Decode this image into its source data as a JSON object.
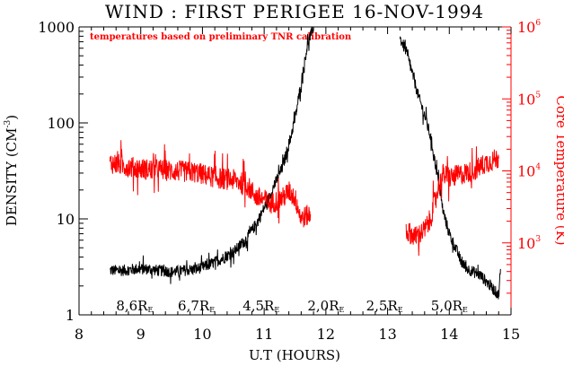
{
  "chart_data": {
    "type": "line",
    "title": "WIND : FIRST PERIGEE 16-NOV-1994",
    "annotation": "temperatures based on preliminary TNR calibration",
    "xlabel": "U.T (HOURS)",
    "ylabel_left": "DENSITY (CM",
    "ylabel_left_exp": "-3",
    "ylabel_left_close": ")",
    "ylabel_right": "Core Temperature (K)",
    "xlim": [
      8,
      15
    ],
    "xticks": [
      "8",
      "9",
      "10",
      "11",
      "12",
      "13",
      "14",
      "15"
    ],
    "y_left": {
      "scale": "log",
      "lim": [
        1,
        1000
      ],
      "ticks": [
        "1",
        "10",
        "100",
        "1000"
      ]
    },
    "y_right": {
      "scale": "log",
      "lim": [
        100,
        1000000
      ],
      "tick_base": "10",
      "tick_exponents": [
        "3",
        "4",
        "5",
        "6"
      ]
    },
    "positions": [
      {
        "hour": 8.9,
        "value": "8,6",
        "unit": "R",
        "sub": "E"
      },
      {
        "hour": 9.9,
        "value": "6,7",
        "unit": "R",
        "sub": "E"
      },
      {
        "hour": 10.95,
        "value": "4,5",
        "unit": "R",
        "sub": "E"
      },
      {
        "hour": 12.0,
        "value": "2,0",
        "unit": "R",
        "sub": "E"
      },
      {
        "hour": 12.95,
        "value": "2,5",
        "unit": "R",
        "sub": "E"
      },
      {
        "hour": 14.0,
        "value": "5,0",
        "unit": "R",
        "sub": "E"
      }
    ],
    "series": [
      {
        "name": "Density",
        "axis": "left",
        "color": "#000000",
        "noise": 0.12,
        "points": [
          [
            8.5,
            2.9
          ],
          [
            8.7,
            2.9
          ],
          [
            8.9,
            3.0
          ],
          [
            9.1,
            3.0
          ],
          [
            9.3,
            2.9
          ],
          [
            9.5,
            2.8
          ],
          [
            9.7,
            2.9
          ],
          [
            9.9,
            3.0
          ],
          [
            10.1,
            3.3
          ],
          [
            10.3,
            3.8
          ],
          [
            10.5,
            4.5
          ],
          [
            10.7,
            6.0
          ],
          [
            10.9,
            9.5
          ],
          [
            11.0,
            13
          ],
          [
            11.1,
            18
          ],
          [
            11.2,
            25
          ],
          [
            11.3,
            35
          ],
          [
            11.4,
            60
          ],
          [
            11.5,
            110
          ],
          [
            11.6,
            260
          ],
          [
            11.7,
            650
          ],
          [
            11.8,
            1000
          ],
          null,
          [
            13.2,
            760
          ],
          [
            13.3,
            560
          ],
          [
            13.4,
            330
          ],
          [
            13.5,
            190
          ],
          [
            13.6,
            120
          ],
          [
            13.7,
            70
          ],
          [
            13.8,
            30
          ],
          [
            13.9,
            12
          ],
          [
            14.0,
            7
          ],
          [
            14.1,
            5
          ],
          [
            14.2,
            3.5
          ],
          [
            14.3,
            3.0
          ],
          [
            14.5,
            2.6
          ],
          [
            14.7,
            1.9
          ],
          [
            14.8,
            1.6
          ],
          [
            14.83,
            3.0
          ]
        ]
      },
      {
        "name": "Core Temperature",
        "axis": "right",
        "color": "#ff0000",
        "noise": 0.3,
        "points": [
          [
            8.5,
            13000
          ],
          [
            8.7,
            12000
          ],
          [
            8.9,
            11000
          ],
          [
            9.1,
            10500
          ],
          [
            9.3,
            10500
          ],
          [
            9.5,
            10000
          ],
          [
            9.7,
            9800
          ],
          [
            9.9,
            9500
          ],
          [
            10.1,
            8500
          ],
          [
            10.3,
            7800
          ],
          [
            10.5,
            7500
          ],
          [
            10.7,
            6500
          ],
          [
            10.9,
            4200
          ],
          [
            11.0,
            4000
          ],
          [
            11.1,
            3500
          ],
          [
            11.3,
            4200
          ],
          [
            11.4,
            5200
          ],
          [
            11.5,
            4200
          ],
          [
            11.6,
            2200
          ],
          [
            11.75,
            2500
          ],
          null,
          [
            13.3,
            1500
          ],
          [
            13.45,
            1200
          ],
          [
            13.6,
            1500
          ],
          [
            13.7,
            2200
          ],
          [
            13.8,
            5200
          ],
          [
            13.9,
            9000
          ],
          [
            14.0,
            8000
          ],
          [
            14.2,
            9000
          ],
          [
            14.4,
            10000
          ],
          [
            14.6,
            13000
          ],
          [
            14.8,
            15000
          ]
        ]
      }
    ]
  }
}
